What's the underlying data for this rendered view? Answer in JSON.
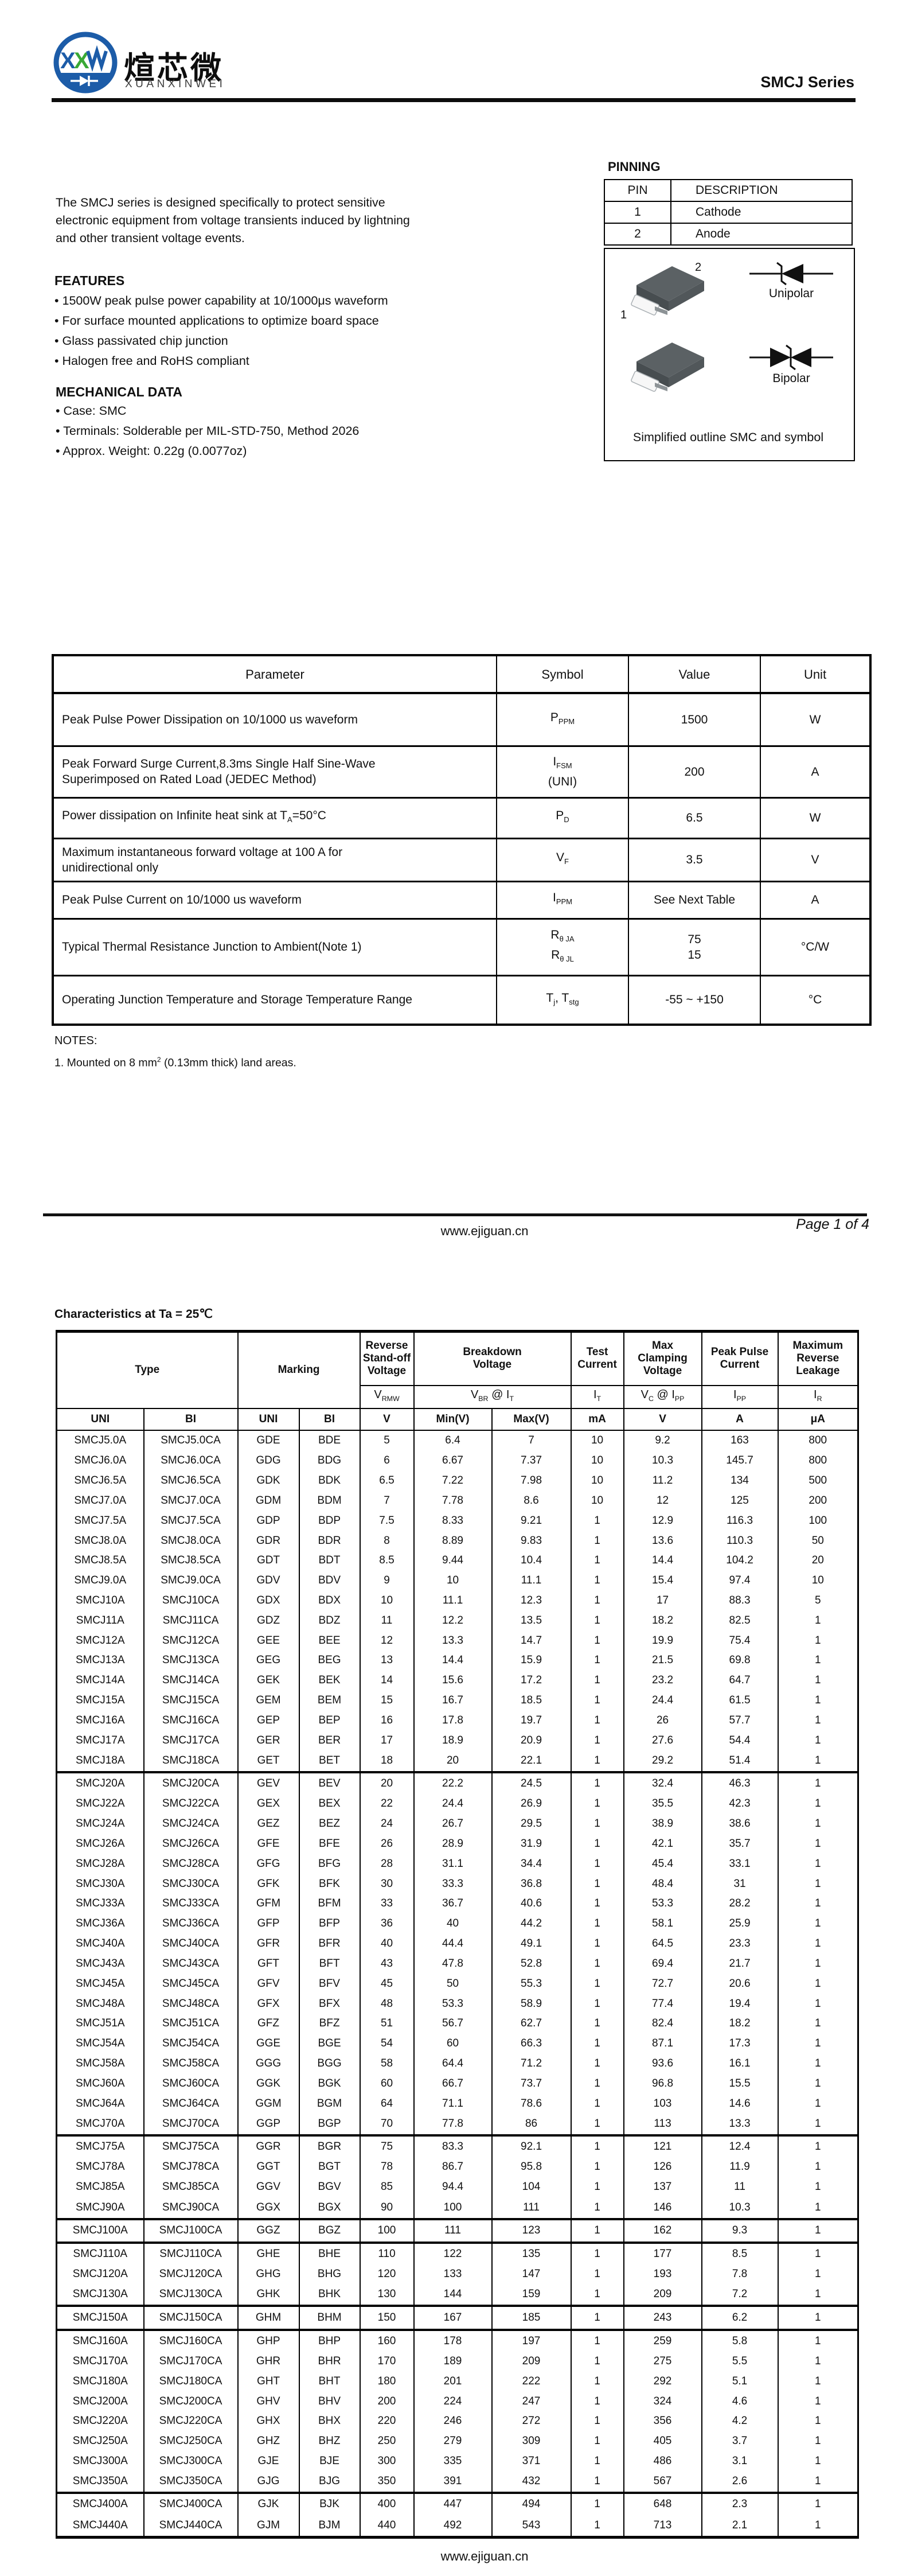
{
  "header": {
    "series": "SMCJ  Series",
    "logo": {
      "monogram": "XXW",
      "cn": "煊芯微",
      "en": "XUANXINWEI"
    }
  },
  "intro": {
    "text": "The SMCJ series is designed specifically to protect sensitive electronic equipment from voltage transients induced by lightning and other transient voltage events."
  },
  "features": {
    "title": "FEATURES",
    "items": [
      "1500W peak pulse power capability at 10/1000μs waveform",
      "For surface mounted applications to optimize board space",
      "Glass passivated chip junction",
      "Halogen free and RoHS compliant"
    ]
  },
  "mechanical": {
    "title": "MECHANICAL DATA",
    "items": [
      "Case: SMC",
      "Terminals: Solderable per MIL-STD-750, Method 2026",
      "Approx. Weight:  0.22g (0.0077oz)"
    ]
  },
  "pinning": {
    "title": "PINNING",
    "headers": [
      "PIN",
      "DESCRIPTION"
    ],
    "rows": [
      [
        "1",
        "Cathode"
      ],
      [
        "2",
        "Anode"
      ]
    ]
  },
  "outline": {
    "caption": "Simplified outline SMC and symbol",
    "unipolar_label": "Unipolar",
    "bipolar_label": "Bipolar",
    "pin1": "1",
    "pin2": "2"
  },
  "param_table": {
    "headers": [
      "Parameter",
      "Symbol",
      "Value",
      "Unit"
    ],
    "rows": [
      {
        "param": "Peak Pulse Power Dissipation on 10/1000 us waveform",
        "symbol": "P_{PPM}",
        "value": "1500",
        "unit": "W"
      },
      {
        "param": "Peak Forward Surge Current,8.3ms Single Half Sine-Wave\nSuperimposed on Rated Load (JEDEC Method)",
        "symbol": "I_{FSM}\n(UNI)",
        "value": "200",
        "unit": "A"
      },
      {
        "param": "Power dissipation on Infinite heat sink at T_{A}=50°C",
        "symbol": "P_{D}",
        "value": "6.5",
        "unit": "W"
      },
      {
        "param": "Maximum instantaneous forward voltage at 100 A for\nunidirectional only",
        "symbol": "V_{F}",
        "value": "3.5",
        "unit": "V"
      },
      {
        "param": "Peak Pulse Current on 10/1000 us waveform",
        "symbol": "I_{PPM}",
        "value": "See Next Table",
        "unit": "A"
      },
      {
        "param": "Typical Thermal Resistance Junction to Ambient(Note 1)",
        "symbol": "R_{θ JA}\nR_{θ JL}",
        "value": "75\n15",
        "unit": "°C/W"
      },
      {
        "param": "Operating Junction Temperature and Storage Temperature Range",
        "symbol": "T_{j}, T_{stg}",
        "value": "-55 ~ +150",
        "unit": "°C"
      }
    ]
  },
  "notes": {
    "title": "NOTES:",
    "items": [
      "1. Mounted on 8 mm^{2} (0.13mm  thick) land areas."
    ]
  },
  "page": {
    "mid_url": "www.ejiguan.cn",
    "page_label": "Page 1 of 4",
    "footer_url": "www.ejiguan.cn"
  },
  "characteristics": {
    "title": "Characteristics at Ta = 25℃",
    "col_groups": [
      "Type",
      "Marking",
      "Reverse\nStand-off\nVoltage",
      "Breakdown\nVoltage",
      "Test\nCurrent",
      "Max\nClamping\nVoltage",
      "Peak Pulse\nCurrent",
      "Maximum\nReverse\nLeakage"
    ],
    "symbol_row": [
      "V_{RMW}",
      "V_{BR} @ I_{T}",
      "I_{T}",
      "V_{C} @ I_{PP}",
      "I_{PP}",
      "I_{R}"
    ],
    "unit_row": [
      "UNI",
      "BI",
      "UNI",
      "BI",
      "V",
      "Min(V)",
      "Max(V)",
      "mA",
      "V",
      "A",
      "μA"
    ],
    "group_breaks": [
      17,
      35,
      39,
      40,
      43,
      44,
      52
    ],
    "rows": [
      [
        "SMCJ5.0A",
        "SMCJ5.0CA",
        "GDE",
        "BDE",
        "5",
        "6.4",
        "7",
        "10",
        "9.2",
        "163",
        "800"
      ],
      [
        "SMCJ6.0A",
        "SMCJ6.0CA",
        "GDG",
        "BDG",
        "6",
        "6.67",
        "7.37",
        "10",
        "10.3",
        "145.7",
        "800"
      ],
      [
        "SMCJ6.5A",
        "SMCJ6.5CA",
        "GDK",
        "BDK",
        "6.5",
        "7.22",
        "7.98",
        "10",
        "11.2",
        "134",
        "500"
      ],
      [
        "SMCJ7.0A",
        "SMCJ7.0CA",
        "GDM",
        "BDM",
        "7",
        "7.78",
        "8.6",
        "10",
        "12",
        "125",
        "200"
      ],
      [
        "SMCJ7.5A",
        "SMCJ7.5CA",
        "GDP",
        "BDP",
        "7.5",
        "8.33",
        "9.21",
        "1",
        "12.9",
        "116.3",
        "100"
      ],
      [
        "SMCJ8.0A",
        "SMCJ8.0CA",
        "GDR",
        "BDR",
        "8",
        "8.89",
        "9.83",
        "1",
        "13.6",
        "110.3",
        "50"
      ],
      [
        "SMCJ8.5A",
        "SMCJ8.5CA",
        "GDT",
        "BDT",
        "8.5",
        "9.44",
        "10.4",
        "1",
        "14.4",
        "104.2",
        "20"
      ],
      [
        "SMCJ9.0A",
        "SMCJ9.0CA",
        "GDV",
        "BDV",
        "9",
        "10",
        "11.1",
        "1",
        "15.4",
        "97.4",
        "10"
      ],
      [
        "SMCJ10A",
        "SMCJ10CA",
        "GDX",
        "BDX",
        "10",
        "11.1",
        "12.3",
        "1",
        "17",
        "88.3",
        "5"
      ],
      [
        "SMCJ11A",
        "SMCJ11CA",
        "GDZ",
        "BDZ",
        "11",
        "12.2",
        "13.5",
        "1",
        "18.2",
        "82.5",
        "1"
      ],
      [
        "SMCJ12A",
        "SMCJ12CA",
        "GEE",
        "BEE",
        "12",
        "13.3",
        "14.7",
        "1",
        "19.9",
        "75.4",
        "1"
      ],
      [
        "SMCJ13A",
        "SMCJ13CA",
        "GEG",
        "BEG",
        "13",
        "14.4",
        "15.9",
        "1",
        "21.5",
        "69.8",
        "1"
      ],
      [
        "SMCJ14A",
        "SMCJ14CA",
        "GEK",
        "BEK",
        "14",
        "15.6",
        "17.2",
        "1",
        "23.2",
        "64.7",
        "1"
      ],
      [
        "SMCJ15A",
        "SMCJ15CA",
        "GEM",
        "BEM",
        "15",
        "16.7",
        "18.5",
        "1",
        "24.4",
        "61.5",
        "1"
      ],
      [
        "SMCJ16A",
        "SMCJ16CA",
        "GEP",
        "BEP",
        "16",
        "17.8",
        "19.7",
        "1",
        "26",
        "57.7",
        "1"
      ],
      [
        "SMCJ17A",
        "SMCJ17CA",
        "GER",
        "BER",
        "17",
        "18.9",
        "20.9",
        "1",
        "27.6",
        "54.4",
        "1"
      ],
      [
        "SMCJ18A",
        "SMCJ18CA",
        "GET",
        "BET",
        "18",
        "20",
        "22.1",
        "1",
        "29.2",
        "51.4",
        "1"
      ],
      [
        "SMCJ20A",
        "SMCJ20CA",
        "GEV",
        "BEV",
        "20",
        "22.2",
        "24.5",
        "1",
        "32.4",
        "46.3",
        "1"
      ],
      [
        "SMCJ22A",
        "SMCJ22CA",
        "GEX",
        "BEX",
        "22",
        "24.4",
        "26.9",
        "1",
        "35.5",
        "42.3",
        "1"
      ],
      [
        "SMCJ24A",
        "SMCJ24CA",
        "GEZ",
        "BEZ",
        "24",
        "26.7",
        "29.5",
        "1",
        "38.9",
        "38.6",
        "1"
      ],
      [
        "SMCJ26A",
        "SMCJ26CA",
        "GFE",
        "BFE",
        "26",
        "28.9",
        "31.9",
        "1",
        "42.1",
        "35.7",
        "1"
      ],
      [
        "SMCJ28A",
        "SMCJ28CA",
        "GFG",
        "BFG",
        "28",
        "31.1",
        "34.4",
        "1",
        "45.4",
        "33.1",
        "1"
      ],
      [
        "SMCJ30A",
        "SMCJ30CA",
        "GFK",
        "BFK",
        "30",
        "33.3",
        "36.8",
        "1",
        "48.4",
        "31",
        "1"
      ],
      [
        "SMCJ33A",
        "SMCJ33CA",
        "GFM",
        "BFM",
        "33",
        "36.7",
        "40.6",
        "1",
        "53.3",
        "28.2",
        "1"
      ],
      [
        "SMCJ36A",
        "SMCJ36CA",
        "GFP",
        "BFP",
        "36",
        "40",
        "44.2",
        "1",
        "58.1",
        "25.9",
        "1"
      ],
      [
        "SMCJ40A",
        "SMCJ40CA",
        "GFR",
        "BFR",
        "40",
        "44.4",
        "49.1",
        "1",
        "64.5",
        "23.3",
        "1"
      ],
      [
        "SMCJ43A",
        "SMCJ43CA",
        "GFT",
        "BFT",
        "43",
        "47.8",
        "52.8",
        "1",
        "69.4",
        "21.7",
        "1"
      ],
      [
        "SMCJ45A",
        "SMCJ45CA",
        "GFV",
        "BFV",
        "45",
        "50",
        "55.3",
        "1",
        "72.7",
        "20.6",
        "1"
      ],
      [
        "SMCJ48A",
        "SMCJ48CA",
        "GFX",
        "BFX",
        "48",
        "53.3",
        "58.9",
        "1",
        "77.4",
        "19.4",
        "1"
      ],
      [
        "SMCJ51A",
        "SMCJ51CA",
        "GFZ",
        "BFZ",
        "51",
        "56.7",
        "62.7",
        "1",
        "82.4",
        "18.2",
        "1"
      ],
      [
        "SMCJ54A",
        "SMCJ54CA",
        "GGE",
        "BGE",
        "54",
        "60",
        "66.3",
        "1",
        "87.1",
        "17.3",
        "1"
      ],
      [
        "SMCJ58A",
        "SMCJ58CA",
        "GGG",
        "BGG",
        "58",
        "64.4",
        "71.2",
        "1",
        "93.6",
        "16.1",
        "1"
      ],
      [
        "SMCJ60A",
        "SMCJ60CA",
        "GGK",
        "BGK",
        "60",
        "66.7",
        "73.7",
        "1",
        "96.8",
        "15.5",
        "1"
      ],
      [
        "SMCJ64A",
        "SMCJ64CA",
        "GGM",
        "BGM",
        "64",
        "71.1",
        "78.6",
        "1",
        "103",
        "14.6",
        "1"
      ],
      [
        "SMCJ70A",
        "SMCJ70CA",
        "GGP",
        "BGP",
        "70",
        "77.8",
        "86",
        "1",
        "113",
        "13.3",
        "1"
      ],
      [
        "SMCJ75A",
        "SMCJ75CA",
        "GGR",
        "BGR",
        "75",
        "83.3",
        "92.1",
        "1",
        "121",
        "12.4",
        "1"
      ],
      [
        "SMCJ78A",
        "SMCJ78CA",
        "GGT",
        "BGT",
        "78",
        "86.7",
        "95.8",
        "1",
        "126",
        "11.9",
        "1"
      ],
      [
        "SMCJ85A",
        "SMCJ85CA",
        "GGV",
        "BGV",
        "85",
        "94.4",
        "104",
        "1",
        "137",
        "11",
        "1"
      ],
      [
        "SMCJ90A",
        "SMCJ90CA",
        "GGX",
        "BGX",
        "90",
        "100",
        "111",
        "1",
        "146",
        "10.3",
        "1"
      ],
      [
        "SMCJ100A",
        "SMCJ100CA",
        "GGZ",
        "BGZ",
        "100",
        "111",
        "123",
        "1",
        "162",
        "9.3",
        "1"
      ],
      [
        "SMCJ110A",
        "SMCJ110CA",
        "GHE",
        "BHE",
        "110",
        "122",
        "135",
        "1",
        "177",
        "8.5",
        "1"
      ],
      [
        "SMCJ120A",
        "SMCJ120CA",
        "GHG",
        "BHG",
        "120",
        "133",
        "147",
        "1",
        "193",
        "7.8",
        "1"
      ],
      [
        "SMCJ130A",
        "SMCJ130CA",
        "GHK",
        "BHK",
        "130",
        "144",
        "159",
        "1",
        "209",
        "7.2",
        "1"
      ],
      [
        "SMCJ150A",
        "SMCJ150CA",
        "GHM",
        "BHM",
        "150",
        "167",
        "185",
        "1",
        "243",
        "6.2",
        "1"
      ],
      [
        "SMCJ160A",
        "SMCJ160CA",
        "GHP",
        "BHP",
        "160",
        "178",
        "197",
        "1",
        "259",
        "5.8",
        "1"
      ],
      [
        "SMCJ170A",
        "SMCJ170CA",
        "GHR",
        "BHR",
        "170",
        "189",
        "209",
        "1",
        "275",
        "5.5",
        "1"
      ],
      [
        "SMCJ180A",
        "SMCJ180CA",
        "GHT",
        "BHT",
        "180",
        "201",
        "222",
        "1",
        "292",
        "5.1",
        "1"
      ],
      [
        "SMCJ200A",
        "SMCJ200CA",
        "GHV",
        "BHV",
        "200",
        "224",
        "247",
        "1",
        "324",
        "4.6",
        "1"
      ],
      [
        "SMCJ220A",
        "SMCJ220CA",
        "GHX",
        "BHX",
        "220",
        "246",
        "272",
        "1",
        "356",
        "4.2",
        "1"
      ],
      [
        "SMCJ250A",
        "SMCJ250CA",
        "GHZ",
        "BHZ",
        "250",
        "279",
        "309",
        "1",
        "405",
        "3.7",
        "1"
      ],
      [
        "SMCJ300A",
        "SMCJ300CA",
        "GJE",
        "BJE",
        "300",
        "335",
        "371",
        "1",
        "486",
        "3.1",
        "1"
      ],
      [
        "SMCJ350A",
        "SMCJ350CA",
        "GJG",
        "BJG",
        "350",
        "391",
        "432",
        "1",
        "567",
        "2.6",
        "1"
      ],
      [
        "SMCJ400A",
        "SMCJ400CA",
        "GJK",
        "BJK",
        "400",
        "447",
        "494",
        "1",
        "648",
        "2.3",
        "1"
      ],
      [
        "SMCJ440A",
        "SMCJ440CA",
        "GJM",
        "BJM",
        "440",
        "492",
        "543",
        "1",
        "713",
        "2.1",
        "1"
      ]
    ]
  }
}
